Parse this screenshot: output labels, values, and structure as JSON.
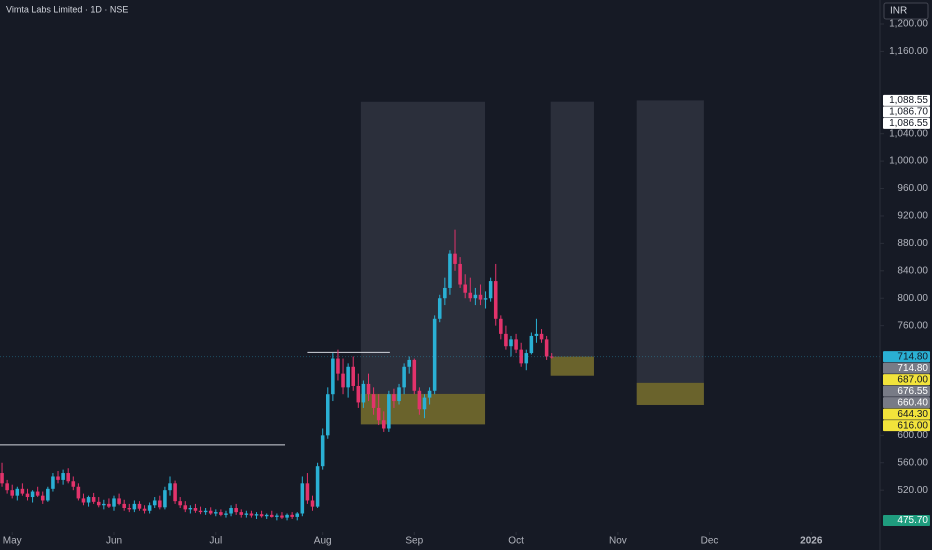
{
  "chart_data": {
    "type": "candlestick",
    "title": "Vimta Labs Limited · 1D · NSE",
    "currency": "INR",
    "up_color": "#2ab0d4",
    "down_color": "#e2336b",
    "xlim": [
      -0.4,
      172.5
    ],
    "xticks": [
      {
        "value": 2,
        "label": "May"
      },
      {
        "value": 22,
        "label": "Jun"
      },
      {
        "value": 42,
        "label": "Jul"
      },
      {
        "value": 63,
        "label": "Aug"
      },
      {
        "value": 81,
        "label": "Sep"
      },
      {
        "value": 101,
        "label": "Oct"
      },
      {
        "value": 121,
        "label": "Nov"
      },
      {
        "value": 139,
        "label": "Dec"
      },
      {
        "value": 159,
        "label": "2026"
      }
    ],
    "ylim": [
      459,
      1235
    ],
    "yticks": [
      {
        "value": 1200,
        "label": "1,200.00"
      },
      {
        "value": 1160,
        "label": "1,160.00"
      },
      {
        "value": 1040,
        "label": "1,040.00"
      },
      {
        "value": 1000,
        "label": "1,000.00"
      },
      {
        "value": 960,
        "label": "960.00"
      },
      {
        "value": 920,
        "label": "920.00"
      },
      {
        "value": 880,
        "label": "880.00"
      },
      {
        "value": 840,
        "label": "840.00"
      },
      {
        "value": 800,
        "label": "800.00"
      },
      {
        "value": 760,
        "label": "760.00"
      },
      {
        "value": 600,
        "label": "600.00"
      },
      {
        "value": 560,
        "label": "560.00"
      },
      {
        "value": 520,
        "label": "520.00"
      }
    ],
    "ohlc": [
      [
        545,
        560,
        525,
        530
      ],
      [
        530,
        535,
        515,
        520
      ],
      [
        520,
        528,
        508,
        512
      ],
      [
        512,
        525,
        505,
        522
      ],
      [
        522,
        530,
        512,
        515
      ],
      [
        515,
        522,
        505,
        510
      ],
      [
        510,
        520,
        502,
        518
      ],
      [
        518,
        525,
        510,
        512
      ],
      [
        512,
        518,
        500,
        505
      ],
      [
        505,
        525,
        503,
        522
      ],
      [
        522,
        545,
        518,
        540
      ],
      [
        540,
        548,
        530,
        535
      ],
      [
        535,
        550,
        528,
        545
      ],
      [
        545,
        552,
        530,
        533
      ],
      [
        533,
        540,
        520,
        525
      ],
      [
        525,
        530,
        505,
        508
      ],
      [
        508,
        515,
        498,
        502
      ],
      [
        502,
        512,
        496,
        510
      ],
      [
        510,
        516,
        500,
        503
      ],
      [
        503,
        510,
        495,
        498
      ],
      [
        498,
        506,
        492,
        500
      ],
      [
        500,
        508,
        494,
        496
      ],
      [
        496,
        512,
        490,
        508
      ],
      [
        508,
        515,
        498,
        500
      ],
      [
        500,
        506,
        490,
        494
      ],
      [
        494,
        500,
        488,
        492
      ],
      [
        492,
        505,
        488,
        500
      ],
      [
        500,
        504,
        490,
        493
      ],
      [
        493,
        498,
        486,
        490
      ],
      [
        490,
        502,
        486,
        498
      ],
      [
        498,
        510,
        494,
        505
      ],
      [
        505,
        512,
        492,
        495
      ],
      [
        495,
        525,
        492,
        520
      ],
      [
        520,
        540,
        512,
        530
      ],
      [
        530,
        534,
        500,
        504
      ],
      [
        504,
        510,
        494,
        498
      ],
      [
        498,
        504,
        488,
        492
      ],
      [
        492,
        498,
        486,
        494
      ],
      [
        494,
        500,
        487,
        490
      ],
      [
        490,
        496,
        485,
        488
      ],
      [
        488,
        494,
        484,
        490
      ],
      [
        490,
        495,
        484,
        486
      ],
      [
        486,
        492,
        482,
        488
      ],
      [
        488,
        492,
        482,
        484
      ],
      [
        484,
        490,
        480,
        486
      ],
      [
        486,
        498,
        482,
        494
      ],
      [
        494,
        500,
        484,
        488
      ],
      [
        488,
        492,
        480,
        484
      ],
      [
        484,
        490,
        480,
        486
      ],
      [
        486,
        490,
        480,
        483
      ],
      [
        483,
        488,
        478,
        485
      ],
      [
        485,
        490,
        480,
        482
      ],
      [
        482,
        486,
        478,
        484
      ],
      [
        484,
        490,
        480,
        481
      ],
      [
        481,
        486,
        476,
        483
      ],
      [
        483,
        488,
        478,
        480
      ],
      [
        480,
        486,
        476,
        484
      ],
      [
        484,
        488,
        478,
        481
      ],
      [
        481,
        488,
        476,
        486
      ],
      [
        486,
        540,
        482,
        530
      ],
      [
        530,
        545,
        500,
        505
      ],
      [
        505,
        512,
        490,
        496
      ],
      [
        496,
        560,
        494,
        555
      ],
      [
        555,
        610,
        550,
        600
      ],
      [
        600,
        670,
        595,
        660
      ],
      [
        660,
        720,
        650,
        712
      ],
      [
        712,
        725,
        680,
        690
      ],
      [
        690,
        712,
        660,
        670
      ],
      [
        670,
        705,
        655,
        700
      ],
      [
        700,
        715,
        665,
        672
      ],
      [
        672,
        690,
        640,
        648
      ],
      [
        648,
        680,
        640,
        675
      ],
      [
        675,
        690,
        650,
        660
      ],
      [
        660,
        670,
        630,
        640
      ],
      [
        640,
        660,
        615,
        622
      ],
      [
        622,
        635,
        605,
        610
      ],
      [
        610,
        665,
        605,
        660
      ],
      [
        660,
        668,
        640,
        650
      ],
      [
        650,
        675,
        645,
        670
      ],
      [
        670,
        705,
        660,
        700
      ],
      [
        700,
        715,
        690,
        710
      ],
      [
        710,
        712,
        660,
        665
      ],
      [
        665,
        670,
        630,
        638
      ],
      [
        638,
        660,
        625,
        655
      ],
      [
        655,
        670,
        645,
        665
      ],
      [
        665,
        775,
        660,
        770
      ],
      [
        770,
        805,
        765,
        800
      ],
      [
        800,
        830,
        790,
        815
      ],
      [
        815,
        870,
        805,
        865
      ],
      [
        865,
        900,
        840,
        850
      ],
      [
        850,
        860,
        815,
        820
      ],
      [
        820,
        835,
        800,
        808
      ],
      [
        808,
        830,
        795,
        800
      ],
      [
        800,
        815,
        790,
        805
      ],
      [
        805,
        820,
        790,
        798
      ],
      [
        798,
        810,
        785,
        800
      ],
      [
        800,
        830,
        795,
        825
      ],
      [
        825,
        850,
        760,
        770
      ],
      [
        770,
        775,
        740,
        748
      ],
      [
        748,
        760,
        725,
        730
      ],
      [
        730,
        745,
        715,
        740
      ],
      [
        740,
        748,
        720,
        725
      ],
      [
        725,
        735,
        700,
        705
      ],
      [
        705,
        725,
        695,
        720
      ],
      [
        720,
        750,
        718,
        745
      ],
      [
        745,
        770,
        735,
        748
      ],
      [
        748,
        755,
        735,
        740
      ],
      [
        740,
        745,
        710,
        715
      ],
      [
        715,
        720,
        712,
        714.8
      ]
    ],
    "zones": [
      {
        "x": [
          70.5,
          94.9
        ],
        "y": [
          616,
          1086.55
        ],
        "color": "rgba(120,125,140,0.22)"
      },
      {
        "x": [
          107.8,
          116.3
        ],
        "y": [
          687,
          1086.7
        ],
        "color": "rgba(120,125,140,0.22)"
      },
      {
        "x": [
          124.7,
          137.9
        ],
        "y": [
          644.3,
          1088.55
        ],
        "color": "rgba(120,125,140,0.22)"
      },
      {
        "x": [
          70.5,
          94.9
        ],
        "y": [
          616,
          660.4
        ],
        "color": "rgba(128,118,40,0.75)"
      },
      {
        "x": [
          107.8,
          116.3
        ],
        "y": [
          687,
          714.8
        ],
        "color": "rgba(128,118,40,0.75)"
      },
      {
        "x": [
          124.7,
          137.9
        ],
        "y": [
          644.3,
          676.55
        ],
        "color": "rgba(128,118,40,0.75)"
      }
    ],
    "lines": [
      {
        "x": [
          -0.4,
          55.6
        ],
        "y": 586
      },
      {
        "x": [
          60,
          76.2
        ],
        "y": 721
      }
    ],
    "price_labels": [
      {
        "value": 1088.55,
        "label": "1,088.55",
        "color": "#ffffff",
        "text_color": "#131722"
      },
      {
        "value": 1086.7,
        "label": "1,086.70",
        "color": "#ffffff",
        "text_color": "#131722"
      },
      {
        "value": 1086.55,
        "label": "1,086.55",
        "color": "#ffffff",
        "text_color": "#131722"
      },
      {
        "value": 714.8,
        "label": "714.80",
        "color": "#2ab0d4",
        "text_color": "#131722"
      },
      {
        "value": 714.8,
        "label": "714.80",
        "color": "#787b86",
        "text_color": "#ffffff"
      },
      {
        "value": 687,
        "label": "687.00",
        "color": "#f2e33b",
        "text_color": "#131722"
      },
      {
        "value": 676.55,
        "label": "676.55",
        "color": "#787b86",
        "text_color": "#ffffff"
      },
      {
        "value": 660.4,
        "label": "660.40",
        "color": "#787b86",
        "text_color": "#ffffff"
      },
      {
        "value": 644.3,
        "label": "644.30",
        "color": "#f2e33b",
        "text_color": "#131722"
      },
      {
        "value": 616,
        "label": "616.00",
        "color": "#f2e33b",
        "text_color": "#131722"
      },
      {
        "value": 475.7,
        "label": "475.70",
        "color": "#1f9c7e",
        "text_color": "#ffffff"
      }
    ]
  }
}
